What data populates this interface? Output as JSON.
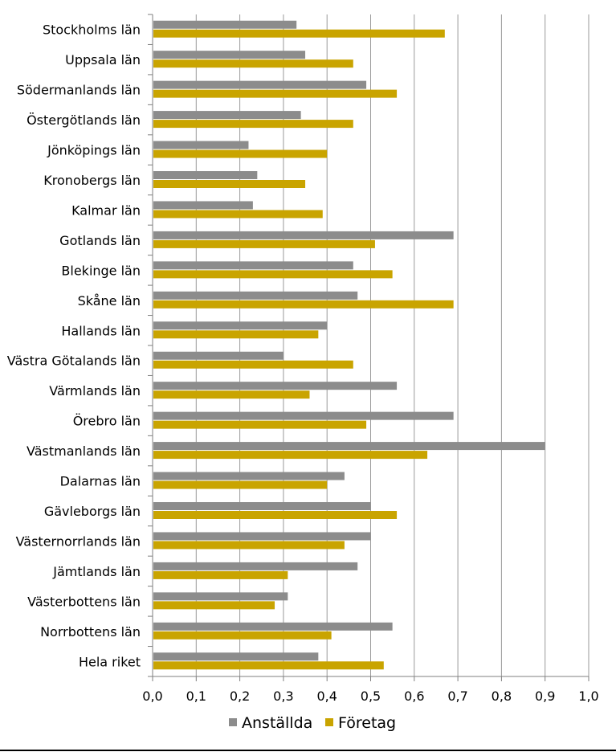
{
  "chart_data": {
    "type": "bar",
    "orientation": "horizontal",
    "categories": [
      "Stockholms län",
      "Uppsala län",
      "Södermanlands län",
      "Östergötlands län",
      "Jönköpings län",
      "Kronobergs län",
      "Kalmar län",
      "Gotlands län",
      "Blekinge län",
      "Skåne län",
      "Hallands län",
      "Västra Götalands län",
      "Värmlands län",
      "Örebro län",
      "Västmanlands län",
      "Dalarnas län",
      "Gävleborgs län",
      "Västernorrlands län",
      "Jämtlands län",
      "Västerbottens län",
      "Norrbottens län",
      "Hela riket"
    ],
    "series": [
      {
        "name": "Anställda",
        "color": "#8c8c8c",
        "values": [
          0.33,
          0.35,
          0.49,
          0.34,
          0.22,
          0.24,
          0.23,
          0.69,
          0.46,
          0.47,
          0.4,
          0.3,
          0.56,
          0.69,
          0.9,
          0.44,
          0.5,
          0.5,
          0.47,
          0.31,
          0.55,
          0.38
        ]
      },
      {
        "name": "Företag",
        "color": "#c9a400",
        "values": [
          0.67,
          0.46,
          0.56,
          0.46,
          0.4,
          0.35,
          0.39,
          0.51,
          0.55,
          0.69,
          0.38,
          0.46,
          0.36,
          0.49,
          0.63,
          0.4,
          0.56,
          0.44,
          0.31,
          0.28,
          0.41,
          0.53
        ]
      }
    ],
    "xlim": [
      0,
      1.0
    ],
    "x_ticks": [
      "0,0",
      "0,1",
      "0,2",
      "0,3",
      "0,4",
      "0,5",
      "0,6",
      "0,7",
      "0,8",
      "0,9",
      "1,0"
    ],
    "grid": "vertical",
    "legend_position": "bottom",
    "title": "",
    "xlabel": "",
    "ylabel": ""
  }
}
